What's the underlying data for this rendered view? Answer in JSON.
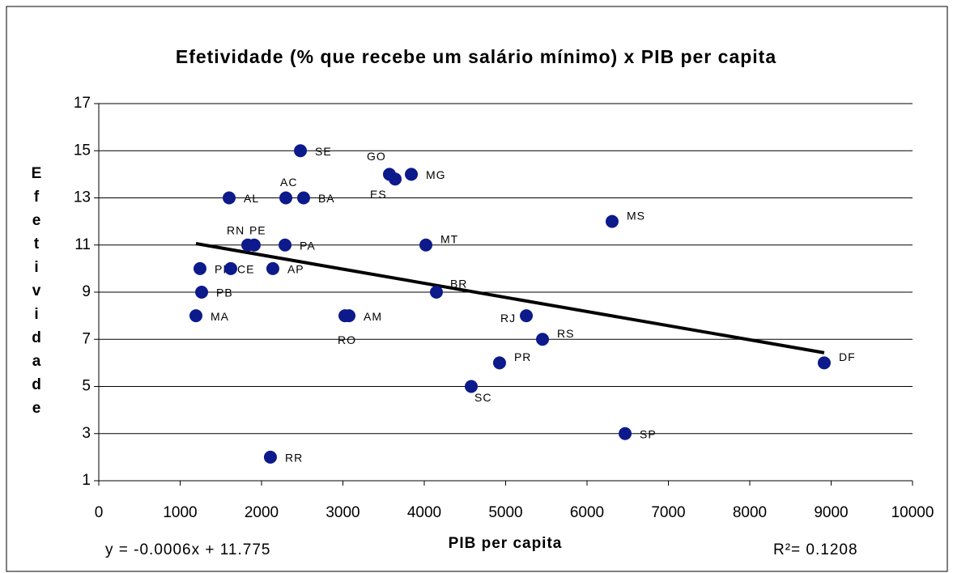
{
  "chart_data": {
    "type": "scatter",
    "title": "Efetividade (% que recebe um salário mínimo) x PIB per capita",
    "xlabel": "PIB per capita",
    "ylabel": "Efetividade",
    "labels": [
      "SE",
      "GO",
      "MG",
      "ES",
      "AL",
      "AC",
      "BA",
      "MS",
      "RN",
      "PE",
      "PA",
      "MT",
      "PI",
      "CE",
      "AP",
      "PB",
      "BR",
      "MA",
      "AM",
      "RO",
      "RJ",
      "RS",
      "PR",
      "DF",
      "SC",
      "SP",
      "RR"
    ],
    "x": [
      2478,
      3572,
      3841,
      3642,
      1602,
      2299,
      2517,
      6308,
      1831,
      1910,
      2289,
      4020,
      1244,
      1622,
      2139,
      1264,
      4149,
      1194,
      3075,
      3025,
      5254,
      5453,
      4925,
      8915,
      4577,
      6468,
      2109
    ],
    "y": [
      15,
      14,
      14,
      13.8,
      13,
      13,
      13,
      12,
      11,
      11,
      11,
      11,
      10,
      10,
      10,
      9,
      9,
      8,
      8,
      8,
      8,
      7,
      6,
      6,
      5,
      3,
      2
    ],
    "color": "#0c1a8c",
    "trendline": {
      "x": [
        1194,
        8915
      ],
      "y": [
        11.06,
        6.43
      ],
      "color": "#000000"
    },
    "equation": "y = -0.0006x + 11.775",
    "r_squared": "R²= 0.1208",
    "xlim": [
      0,
      10000
    ],
    "xticks": [
      0,
      1000,
      2000,
      3000,
      4000,
      5000,
      6000,
      7000,
      8000,
      9000,
      10000
    ],
    "ylim": [
      1,
      17
    ],
    "yticks": [
      1,
      3,
      5,
      7,
      9,
      11,
      13,
      15,
      17
    ],
    "grid": true
  }
}
